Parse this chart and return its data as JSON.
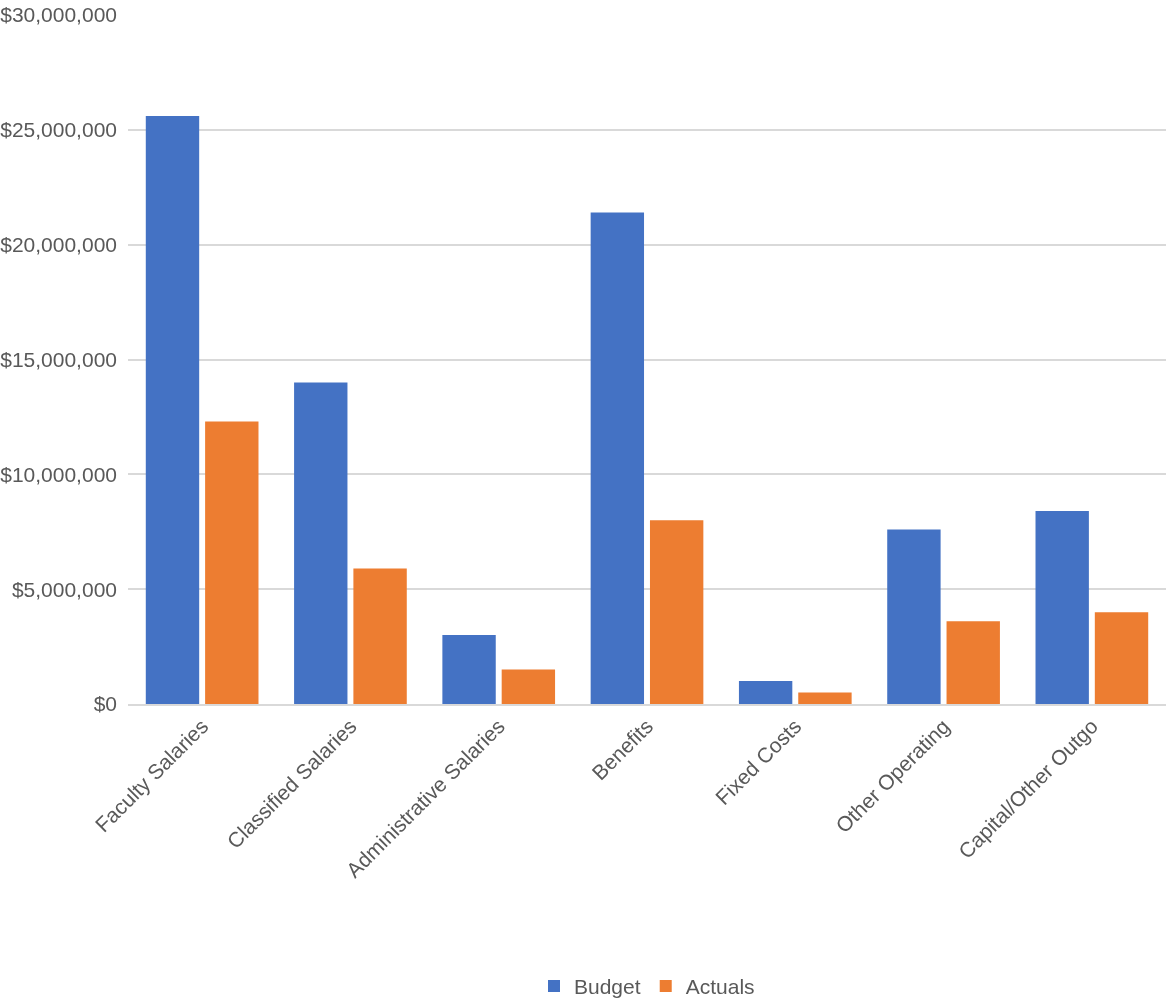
{
  "chart_data": {
    "type": "bar",
    "categories": [
      "Faculty Salaries",
      "Classified Salaries",
      "Administrative Salaries",
      "Benefits",
      "Fixed Costs",
      "Other Operating",
      "Capital/Other Outgo"
    ],
    "series": [
      {
        "name": "Budget",
        "color": "#4472c4",
        "values": [
          25600000,
          14000000,
          3000000,
          21400000,
          1000000,
          7600000,
          8400000
        ]
      },
      {
        "name": "Actuals",
        "color": "#ed7d31",
        "values": [
          12300000,
          5900000,
          1500000,
          8000000,
          500000,
          3600000,
          4000000
        ]
      }
    ],
    "ylim": [
      0,
      30000000
    ],
    "yticks": [
      {
        "value": 0,
        "label": "$0"
      },
      {
        "value": 5000000,
        "label": "$5,000,000"
      },
      {
        "value": 10000000,
        "label": "$10,000,000"
      },
      {
        "value": 15000000,
        "label": "$15,000,000"
      },
      {
        "value": 20000000,
        "label": "$20,000,000"
      },
      {
        "value": 25000000,
        "label": "$25,000,000"
      },
      {
        "value": 30000000,
        "label": "$30,000,000"
      }
    ],
    "grid": "y",
    "legend": "bottom"
  }
}
